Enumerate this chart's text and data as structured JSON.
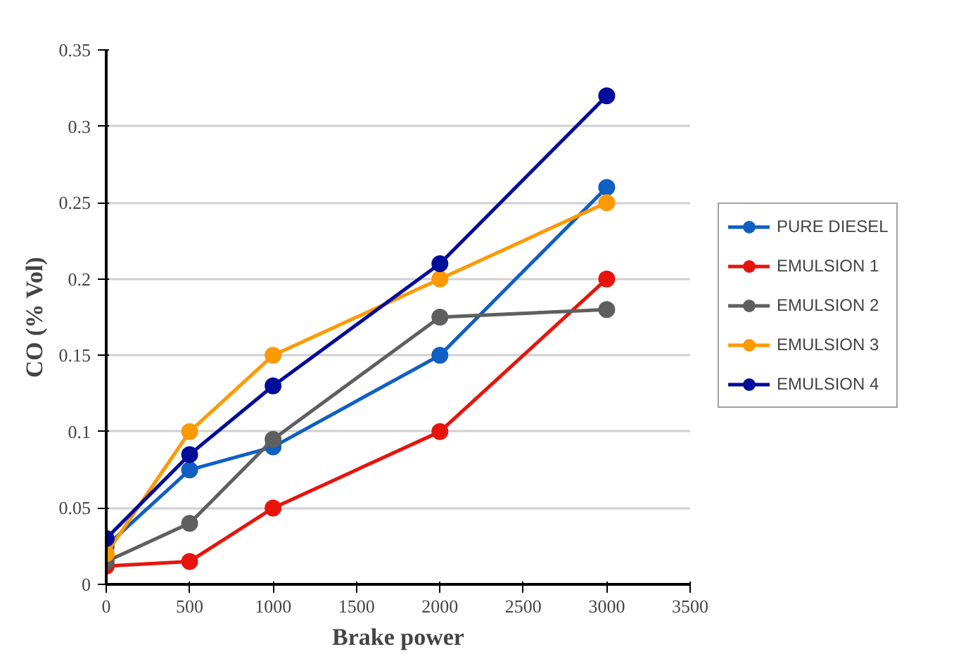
{
  "chart_data": {
    "type": "line",
    "xlabel": "Brake power",
    "ylabel": "CO (% Vol)",
    "x": [
      0,
      500,
      1000,
      2000,
      3000
    ],
    "series": [
      {
        "name": "PURE DIESEL",
        "color": "#0f5fc4",
        "values": [
          0.025,
          0.075,
          0.09,
          0.15,
          0.26
        ]
      },
      {
        "name": "EMULSION 1",
        "color": "#e8140c",
        "values": [
          0.012,
          0.015,
          0.05,
          0.1,
          0.2
        ]
      },
      {
        "name": "EMULSION 2",
        "color": "#5f5f5f",
        "values": [
          0.015,
          0.04,
          0.095,
          0.175,
          0.18
        ]
      },
      {
        "name": "EMULSION 3",
        "color": "#ff9900",
        "values": [
          0.02,
          0.1,
          0.15,
          0.2,
          0.25
        ]
      },
      {
        "name": "EMULSION 4",
        "color": "#000c9a",
        "values": [
          0.03,
          0.085,
          0.13,
          0.21,
          0.32
        ]
      }
    ],
    "xlim": [
      0,
      3500
    ],
    "xticks": [
      0,
      500,
      1000,
      1500,
      2000,
      2500,
      3000,
      3500
    ],
    "ylim": [
      0,
      0.35
    ],
    "yticks": [
      {
        "value": 0,
        "label": "0"
      },
      0.05,
      {
        "value": 0.1,
        "label": "0.1"
      },
      0.15,
      {
        "value": 0.2,
        "label": "0.2"
      },
      0.25,
      {
        "value": 0.3,
        "label": "0.3"
      },
      0.35
    ],
    "grid": "y",
    "legend": "right",
    "marker": "circle",
    "line_style": "solid"
  }
}
